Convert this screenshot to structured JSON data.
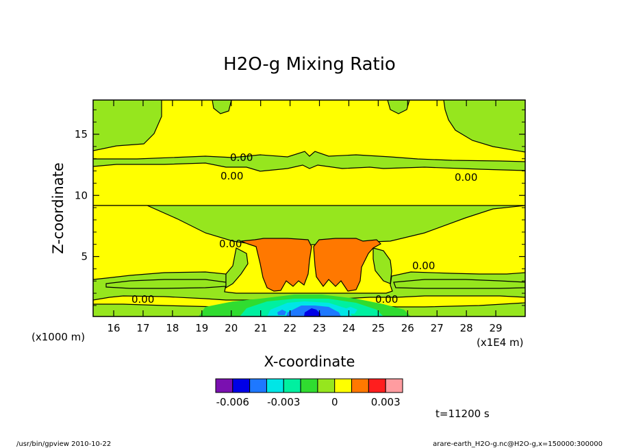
{
  "chart_data": {
    "type": "contour",
    "title": "H2O-g Mixing Ratio",
    "xlabel": "X-coordinate",
    "ylabel": "Z-coordinate",
    "x_scale_note": "(x1E4 m)",
    "y_scale_note": "(x1000 m)",
    "xlim": [
      15.3,
      30.0
    ],
    "ylim": [
      0.1,
      17.8
    ],
    "x_ticks": [
      16,
      17,
      18,
      19,
      20,
      21,
      22,
      23,
      24,
      25,
      26,
      27,
      28,
      29
    ],
    "y_ticks": [
      5,
      10,
      15
    ],
    "contour_labels": [
      "0.00",
      "0.00",
      "0.00",
      "0.00",
      "0.00",
      "0.00",
      "0.00"
    ],
    "time_label": "t=11200 s",
    "colorbar": {
      "colors": [
        "#7a10b0",
        "#0000e6",
        "#1e78ff",
        "#00e6e6",
        "#00f0a0",
        "#30dc30",
        "#96e61e",
        "#ffff00",
        "#ff7800",
        "#ff1e1e",
        "#ff9ca0"
      ],
      "tick_labels": [
        "-0.006",
        "-0.003",
        "0",
        "0.003"
      ]
    },
    "levels": {
      "dry": "#96e61e",
      "moist": "#ffff00",
      "max": "#ff7800",
      "green": "#30dc30",
      "teal": "#00f0a0",
      "cyan": "#00e6e6",
      "blue": "#1e78ff",
      "deep": "#0000e6"
    }
  },
  "footer": {
    "left": "/usr/bin/gpview  2010-10-22",
    "right": "arare-earth_H2O-g.nc@H2O-g,x=150000:300000"
  }
}
